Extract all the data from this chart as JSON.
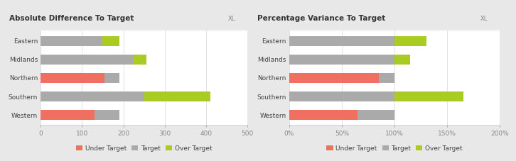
{
  "left_title": "Absolute Difference To Target",
  "right_title": "Percentage Variance To Target",
  "categories": [
    "Eastern",
    "Midlands",
    "Northern",
    "Southern",
    "Western"
  ],
  "left": {
    "under_target": [
      0,
      0,
      155,
      0,
      130
    ],
    "target": [
      150,
      225,
      35,
      250,
      60
    ],
    "over_target": [
      40,
      30,
      0,
      160,
      0
    ],
    "xlim": [
      0,
      500
    ],
    "xticks": [
      0,
      100,
      200,
      300,
      400,
      500
    ],
    "xticklabels": [
      "0",
      "100",
      "200",
      "300",
      "400",
      "500"
    ]
  },
  "right": {
    "under_target": [
      0,
      0,
      85,
      0,
      65
    ],
    "target": [
      100,
      100,
      15,
      100,
      35
    ],
    "over_target": [
      30,
      15,
      0,
      65,
      0
    ],
    "xlim": [
      0,
      200
    ],
    "xticks": [
      0,
      50,
      100,
      150,
      200
    ],
    "xticklabels": [
      "0%",
      "50%",
      "100%",
      "150%",
      "200%"
    ]
  },
  "colors": {
    "under_target": "#F07060",
    "target": "#AAAAAA",
    "over_target": "#AACC22"
  },
  "legend_labels": [
    "Under Target",
    "Target",
    "Over Target"
  ],
  "background_color": "#E8E8E8",
  "panel_color": "#FFFFFF",
  "title_bg_color": "#E0E0E0",
  "title_fontsize": 7.5,
  "axis_fontsize": 6.5,
  "label_fontsize": 6.5,
  "bar_height": 0.55
}
